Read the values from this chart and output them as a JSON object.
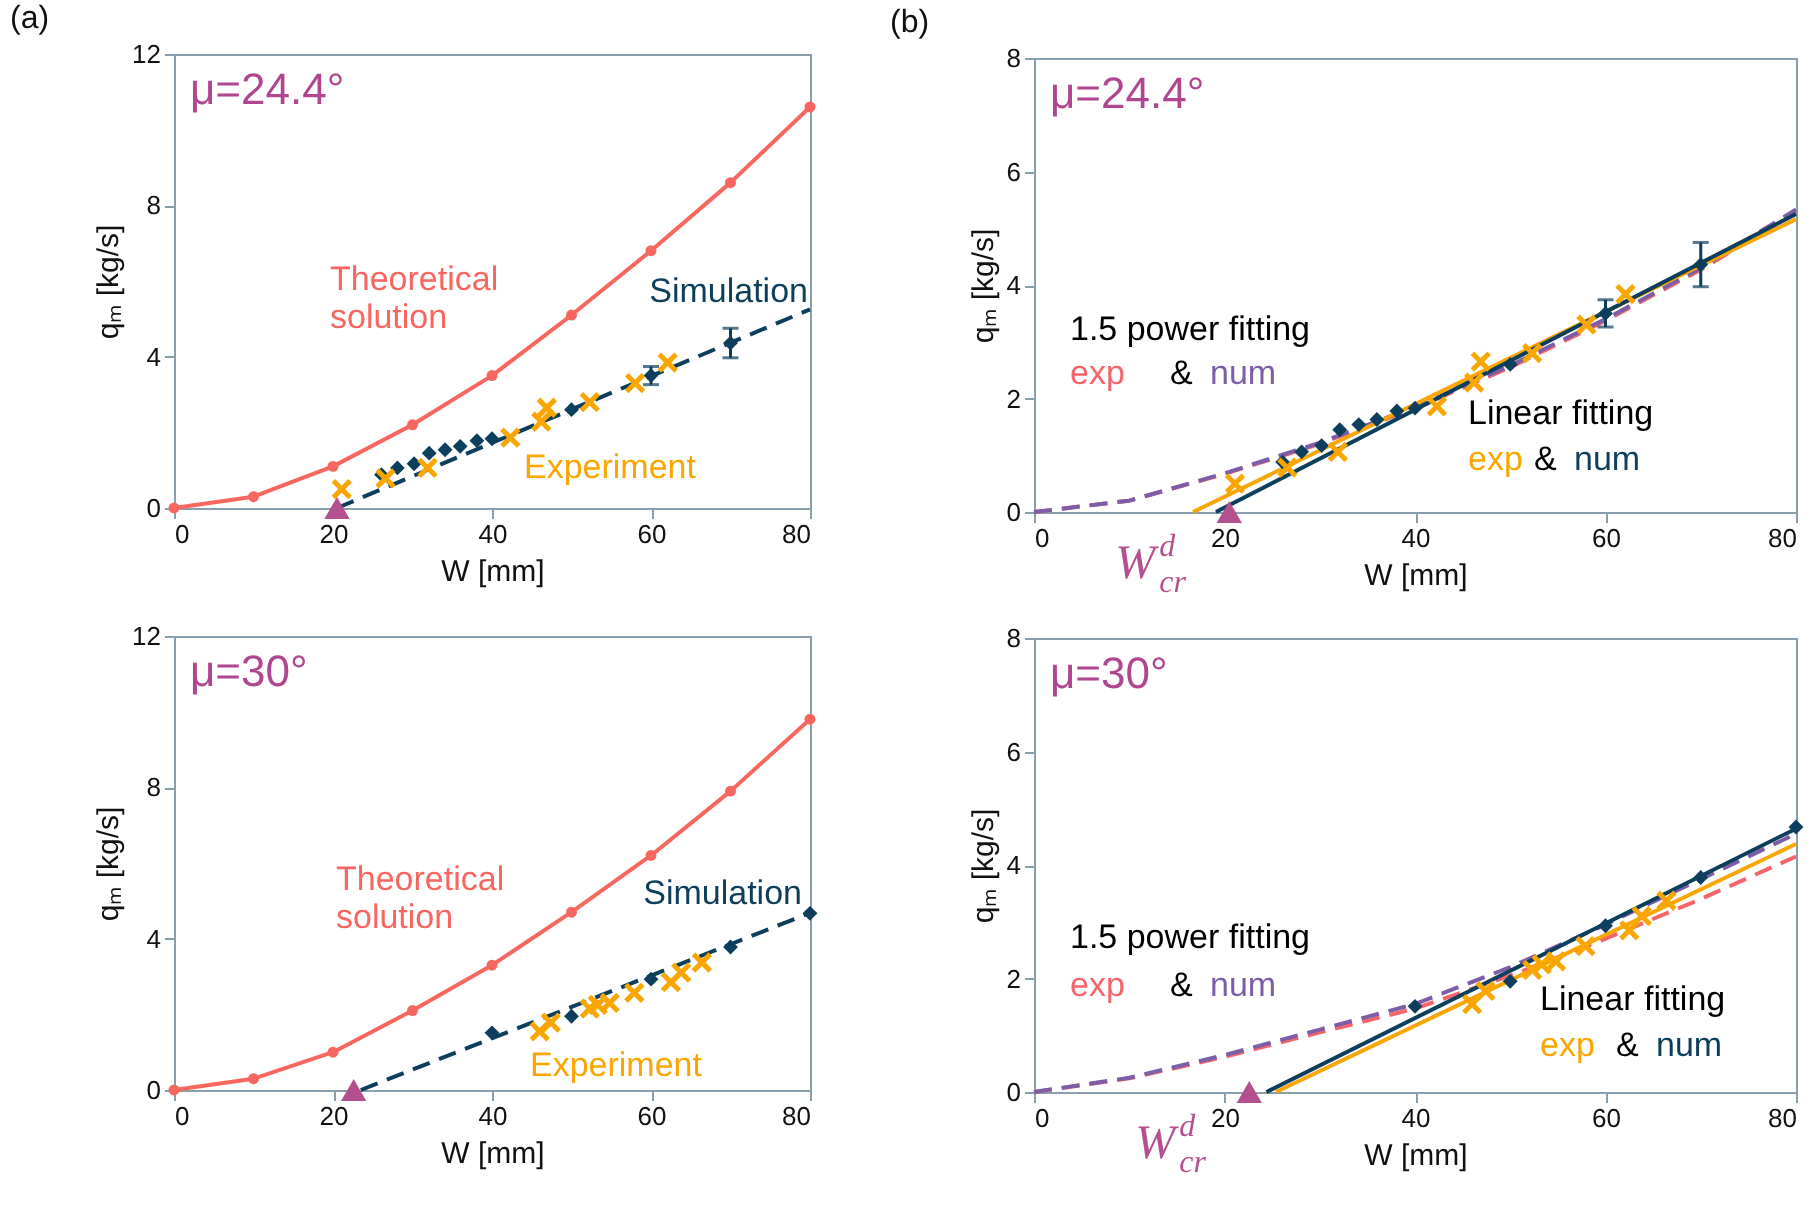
{
  "chart_data": [
    {
      "type": "line",
      "title": "(a)",
      "xlabel": "W [mm]",
      "ylabel": "qₘ [kg/s]",
      "xlim": [
        0,
        80
      ],
      "ylim": [
        0,
        12
      ],
      "xticks": [
        0,
        20,
        40,
        60,
        80
      ],
      "yticks": [
        0,
        4,
        8,
        12
      ],
      "annotations": [
        "μ=24.4°"
      ],
      "series": [
        {
          "name": "Theoretical solution",
          "type": "line",
          "marker": "circle",
          "color": "#f7665f",
          "x": [
            0,
            10,
            20,
            30,
            40,
            50,
            60,
            70,
            80
          ],
          "values": [
            0,
            0.3,
            1.1,
            2.2,
            3.5,
            5.1,
            6.8,
            8.6,
            10.6
          ]
        },
        {
          "type": "line",
          "line_style": "dashed",
          "color": "#0d3f5c",
          "x": [
            20.5,
            80
          ],
          "values": [
            0,
            5.25
          ]
        },
        {
          "name": "Simulation",
          "type": "scatter",
          "marker": "diamond",
          "color": "#0d3f5c",
          "x": [
            26.1,
            28.1,
            30.2,
            32.1,
            34.1,
            36,
            38.1,
            40,
            50,
            60,
            70
          ],
          "values": [
            0.88,
            1.06,
            1.17,
            1.45,
            1.54,
            1.63,
            1.78,
            1.83,
            2.6,
            3.5,
            4.36
          ],
          "errors": [
            null,
            null,
            null,
            null,
            null,
            null,
            null,
            null,
            null,
            0.24,
            0.39
          ]
        },
        {
          "name": "Experiment",
          "type": "scatter",
          "marker": "cross",
          "color": "#f9a602",
          "x": [
            21.1,
            26.6,
            31.9,
            42.3,
            46.2,
            46.9,
            52.3,
            58,
            62.1
          ],
          "values": [
            0.5,
            0.78,
            1.06,
            1.86,
            2.28,
            2.65,
            2.8,
            3.3,
            3.84
          ]
        },
        {
          "type": "scatter",
          "marker": "triangle",
          "color": "#b5508f",
          "x": [
            20.5
          ],
          "values": [
            0
          ]
        }
      ]
    },
    {
      "type": "line",
      "title": "(b)",
      "xlabel": "W [mm]",
      "ylabel": "qₘ [kg/s]",
      "xlim": [
        0,
        80
      ],
      "ylim": [
        0,
        8
      ],
      "xticks": [
        0,
        20,
        40,
        60,
        80
      ],
      "yticks": [
        0,
        2,
        4,
        6,
        8
      ],
      "annotations": [
        "μ=24.4°",
        "1.5 power fitting",
        "&",
        "Linear fitting",
        "&",
        {
          "text": "W$^{d}$$_{cr}$",
          "x": 20.5,
          "y": 0
        }
      ],
      "series": [
        {
          "name": "exp",
          "type": "line",
          "line_style": "dashed",
          "color": "#f4646a",
          "x": [
            0,
            10,
            20,
            30,
            40,
            50,
            60,
            70,
            80
          ],
          "values": [
            0,
            0.2,
            0.67,
            1.2,
            1.83,
            2.55,
            3.37,
            4.27,
            5.28
          ]
        },
        {
          "name": "num",
          "type": "line",
          "line_style": "dashed",
          "color": "#7b5ea7",
          "x": [
            0,
            10,
            20,
            30,
            40,
            50,
            60,
            70,
            80
          ],
          "values": [
            0,
            0.2,
            0.68,
            1.22,
            1.85,
            2.58,
            3.4,
            4.3,
            5.33
          ]
        },
        {
          "name": "exp",
          "type": "line",
          "color": "#f9a602",
          "x": [
            16.7,
            80
          ],
          "values": [
            0,
            5.16
          ]
        },
        {
          "name": "num",
          "type": "line",
          "color": "#0d3f5c",
          "x": [
            19.1,
            80
          ],
          "values": [
            0,
            5.25
          ]
        },
        {
          "type": "scatter",
          "marker": "diamond",
          "color": "#0d3f5c",
          "x": [
            26.1,
            28.1,
            30.2,
            32.1,
            34.1,
            36,
            38.1,
            40,
            50,
            60,
            70
          ],
          "values": [
            0.88,
            1.06,
            1.17,
            1.45,
            1.54,
            1.63,
            1.78,
            1.83,
            2.6,
            3.5,
            4.36
          ],
          "errors": [
            null,
            null,
            null,
            null,
            null,
            null,
            null,
            null,
            null,
            0.24,
            0.39
          ]
        },
        {
          "type": "scatter",
          "marker": "cross",
          "color": "#f9a602",
          "x": [
            21.1,
            26.6,
            31.9,
            42.3,
            46.2,
            46.9,
            52.3,
            58,
            62.1
          ],
          "values": [
            0.5,
            0.78,
            1.06,
            1.86,
            2.28,
            2.65,
            2.8,
            3.3,
            3.84
          ]
        },
        {
          "type": "scatter",
          "marker": "triangle",
          "color": "#b5508f",
          "x": [
            20.5
          ],
          "values": [
            0
          ]
        }
      ]
    },
    {
      "type": "line",
      "xlabel": "W [mm]",
      "ylabel": "qₘ [kg/s]",
      "xlim": [
        0,
        80
      ],
      "ylim": [
        0,
        12
      ],
      "xticks": [
        0,
        20,
        40,
        60,
        80
      ],
      "yticks": [
        0,
        4,
        8,
        12
      ],
      "annotations": [
        "μ=30°"
      ],
      "series": [
        {
          "name": "Theoretical solution",
          "type": "line",
          "marker": "circle",
          "color": "#f7665f",
          "x": [
            0,
            10,
            20,
            30,
            40,
            50,
            60,
            70,
            80
          ],
          "values": [
            0,
            0.3,
            1.0,
            2.1,
            3.3,
            4.7,
            6.2,
            7.9,
            9.8
          ]
        },
        {
          "type": "line",
          "line_style": "dashed",
          "color": "#0d3f5c",
          "x": [
            23.5,
            80
          ],
          "values": [
            0,
            4.68
          ]
        },
        {
          "name": "Simulation",
          "type": "scatter",
          "marker": "diamond",
          "color": "#0d3f5c",
          "x": [
            40,
            50,
            60,
            70,
            80
          ],
          "values": [
            1.51,
            1.95,
            2.93,
            3.78,
            4.67
          ]
        },
        {
          "name": "Experiment",
          "type": "scatter",
          "marker": "cross",
          "color": "#f9a602",
          "x": [
            46,
            47.4,
            52.3,
            53.3,
            54.8,
            57.9,
            62.5,
            63.8,
            66.4
          ],
          "values": [
            1.55,
            1.78,
            2.15,
            2.25,
            2.3,
            2.57,
            2.85,
            3.1,
            3.37
          ]
        },
        {
          "type": "scatter",
          "marker": "triangle",
          "color": "#b5508f",
          "x": [
            22.6
          ],
          "values": [
            0
          ]
        }
      ]
    },
    {
      "type": "line",
      "xlabel": "W [mm]",
      "ylabel": "qₘ [kg/s]",
      "xlim": [
        0,
        80
      ],
      "ylim": [
        0,
        8
      ],
      "xticks": [
        0,
        20,
        40,
        60,
        80
      ],
      "yticks": [
        0,
        2,
        4,
        6,
        8
      ],
      "annotations": [
        "μ=30°",
        "1.5 power fitting",
        "&",
        "Linear fitting",
        "&",
        {
          "text": "W$^{d}$$_{cr}$",
          "x": 22.6,
          "y": 0
        }
      ],
      "series": [
        {
          "name": "exp",
          "type": "line",
          "line_style": "dashed",
          "color": "#f4646a",
          "x": [
            0,
            10,
            20,
            30,
            40,
            50,
            60,
            70,
            80
          ],
          "values": [
            0,
            0.24,
            0.62,
            1.05,
            1.47,
            2.05,
            2.7,
            3.4,
            4.15
          ]
        },
        {
          "name": "num",
          "type": "line",
          "line_style": "dashed",
          "color": "#7b5ea7",
          "x": [
            0,
            10,
            20,
            30,
            40,
            50,
            60,
            70,
            80
          ],
          "values": [
            0,
            0.25,
            0.65,
            1.1,
            1.55,
            2.2,
            2.95,
            3.75,
            4.55
          ]
        },
        {
          "name": "exp",
          "type": "line",
          "color": "#f9a602",
          "x": [
            25.4,
            80
          ],
          "values": [
            0,
            4.37
          ]
        },
        {
          "name": "num",
          "type": "line",
          "color": "#0d3f5c",
          "x": [
            24.4,
            80
          ],
          "values": [
            0,
            4.64
          ]
        },
        {
          "type": "scatter",
          "marker": "diamond",
          "color": "#0d3f5c",
          "x": [
            40,
            50,
            60,
            70,
            80
          ],
          "values": [
            1.51,
            1.95,
            2.93,
            3.78,
            4.67
          ]
        },
        {
          "type": "scatter",
          "marker": "cross",
          "color": "#f9a602",
          "x": [
            46,
            47.4,
            52.3,
            53.3,
            54.8,
            57.9,
            62.5,
            63.8,
            66.4
          ],
          "values": [
            1.55,
            1.78,
            2.15,
            2.25,
            2.3,
            2.57,
            2.85,
            3.1,
            3.37
          ]
        },
        {
          "type": "scatter",
          "marker": "triangle",
          "color": "#b5508f",
          "x": [
            22.6
          ],
          "values": [
            0
          ]
        }
      ]
    }
  ]
}
